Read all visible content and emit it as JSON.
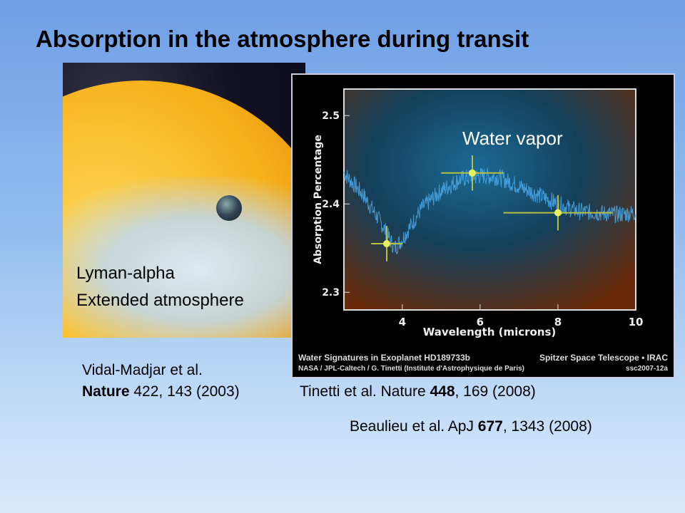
{
  "slide": {
    "title": "Absorption in the atmosphere during transit"
  },
  "left_image": {
    "label_line1": "Lyman-alpha",
    "label_line2": "Extended atmosphere"
  },
  "references": {
    "vidal_line1": "Vidal-Madjar et al.",
    "vidal_journal": "Nature",
    "vidal_rest": " 422, 143 (2003)",
    "tinetti_pre": "Tinetti et al.  Nature ",
    "tinetti_vol": "448",
    "tinetti_rest": ", 169 (2008)",
    "beaulieu_pre": "Beaulieu et al. ApJ ",
    "beaulieu_vol": "677",
    "beaulieu_rest": ", 1343 (2008)"
  },
  "figure_caption": {
    "left1": "Water Signatures in Exoplanet  HD189733b",
    "right1": "Spitzer Space Telescope • IRAC",
    "left2": "NASA / JPL-Caltech / G. Tinetti (Institute d'Astrophysique de Paris)",
    "right2": "ssc2007-12a"
  },
  "chart_data": {
    "type": "scatter",
    "annotation": "Water vapor",
    "xlabel": "Wavelength (microns)",
    "ylabel": "Absorption Percentage",
    "xlim": [
      2.5,
      10
    ],
    "ylim": [
      2.28,
      2.53
    ],
    "xticks": [
      "4",
      "6",
      "8",
      "10"
    ],
    "yticks": [
      "2.3",
      "2.4",
      "2.5"
    ],
    "grid": false,
    "colors": {
      "points": "#e8f060",
      "model": "#4aa8e8"
    },
    "points": [
      {
        "x": 3.6,
        "y": 2.355,
        "xerr": [
          3.2,
          4.0
        ],
        "yerr": [
          2.335,
          2.375
        ]
      },
      {
        "x": 5.8,
        "y": 2.435,
        "xerr": [
          5.0,
          6.6
        ],
        "yerr": [
          2.415,
          2.455
        ]
      },
      {
        "x": 8.0,
        "y": 2.39,
        "xerr": [
          6.6,
          9.4
        ],
        "yerr": [
          2.37,
          2.41
        ]
      }
    ],
    "model": {
      "x": [
        2.5,
        3.0,
        3.5,
        3.8,
        4.0,
        4.5,
        5.0,
        5.5,
        6.0,
        6.5,
        7.0,
        7.5,
        8.0,
        8.5,
        9.0,
        9.5,
        10.0
      ],
      "y": [
        2.435,
        2.41,
        2.375,
        2.35,
        2.36,
        2.395,
        2.415,
        2.428,
        2.432,
        2.43,
        2.42,
        2.41,
        2.4,
        2.392,
        2.39,
        2.388,
        2.39
      ]
    }
  }
}
